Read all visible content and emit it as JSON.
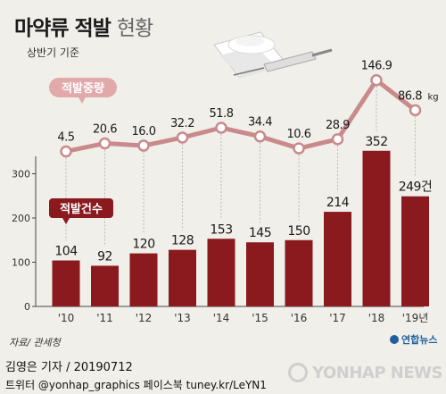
{
  "header": {
    "title_main": "마약류 적발",
    "title_light": "현황",
    "subtitle": "상반기 기준"
  },
  "footer": {
    "source": "자료/ 관세청",
    "credit": "김영은 기자 / 20190712",
    "twitter": "트위터 @yonhap_graphics  페이스북 tuney.kr/LeYN1",
    "agency_small": "연합뉴스",
    "watermark": "YONHAP NEWS"
  },
  "colors": {
    "bar": "#8b1a1f",
    "line": "#c98a8c",
    "label_box": "#8b1a1f",
    "weight_badge": "#e2a9aa",
    "background": "#f0efea"
  },
  "chart_data": {
    "type": "bar+line",
    "categories": [
      "'10",
      "'11",
      "'12",
      "'13",
      "'14",
      "'15",
      "'16",
      "'17",
      "'18",
      "'19년"
    ],
    "series": [
      {
        "name": "적발건수",
        "type": "bar",
        "values": [
          104,
          92,
          120,
          128,
          153,
          145,
          150,
          214,
          352,
          249
        ],
        "labels": [
          "104",
          "92",
          "120",
          "128",
          "153",
          "145",
          "150",
          "214",
          "352",
          "249건"
        ]
      },
      {
        "name": "적발중량",
        "type": "line",
        "values": [
          4.5,
          20.6,
          16.0,
          32.2,
          51.8,
          34.4,
          10.6,
          28.9,
          146.9,
          86.8
        ],
        "labels": [
          "4.5",
          "20.6",
          "16.0",
          "32.2",
          "51.8",
          "34.4",
          "10.6",
          "28.9",
          "146.9",
          "86.8"
        ],
        "unit": "kg"
      }
    ],
    "ylim": [
      0,
      380
    ],
    "yticks": [
      0,
      100,
      200,
      300
    ],
    "grid": false
  }
}
